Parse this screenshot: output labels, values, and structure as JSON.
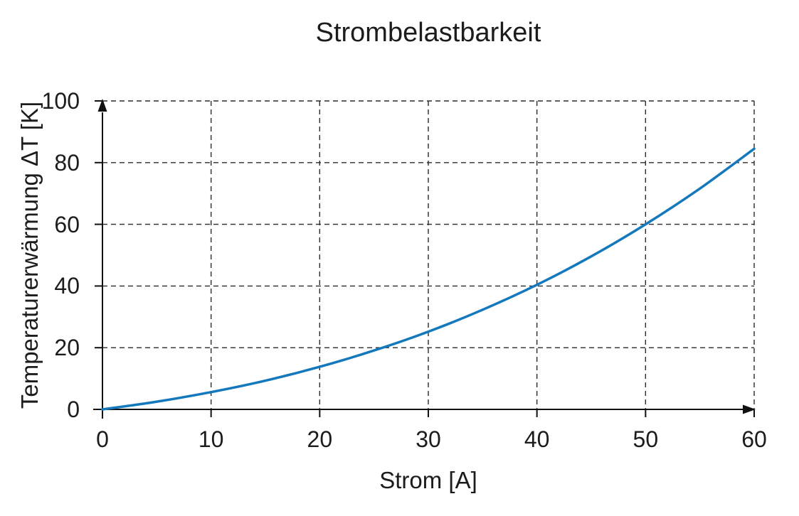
{
  "chart_data": {
    "type": "line",
    "title": "Strombelastbarkeit",
    "xlabel": "Strom [A]",
    "ylabel": "Temperaturerwärmung ΔT [K]",
    "xlim": [
      0,
      60
    ],
    "ylim": [
      0,
      100
    ],
    "x_ticks": [
      0,
      10,
      20,
      30,
      40,
      50,
      60
    ],
    "y_ticks": [
      0,
      20,
      40,
      60,
      80,
      100
    ],
    "grid": "dashed",
    "legend_position": "none",
    "axis_arrows": true,
    "axis_color": "#111111",
    "grid_color": "#2b2b2b",
    "series": [
      {
        "name": "Temperaturerwärmung",
        "color": "#1478bd",
        "x": [
          0,
          5,
          10,
          15,
          20,
          25,
          30,
          35,
          40,
          45,
          50,
          55,
          60
        ],
        "y": [
          0,
          2.5,
          5.6,
          9.3,
          13.8,
          19.1,
          25.2,
          32.3,
          40.4,
          49.6,
          60.0,
          71.6,
          84.5
        ]
      }
    ]
  }
}
